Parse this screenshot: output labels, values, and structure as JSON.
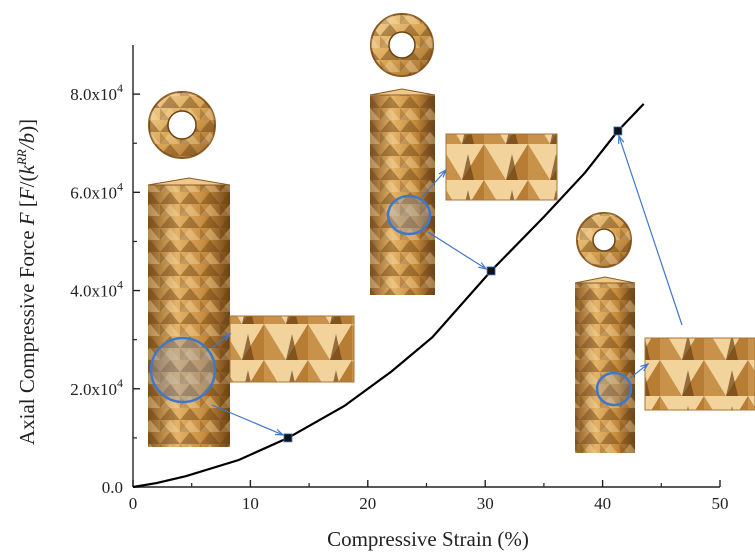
{
  "chart_data": {
    "type": "line",
    "title": "",
    "xlabel": "Compressive Strain (%)",
    "ylabel": {
      "prefix": "Axial Compressive Force ",
      "var": "F",
      "unit_open": " [",
      "unit_var": "F",
      "unit_mid": "/(",
      "unit_k": "k",
      "unit_sup": "RR",
      "unit_b": "/b",
      "unit_close": ")]"
    },
    "xlim": [
      0,
      50
    ],
    "ylim": [
      0,
      90000
    ],
    "xticks": [
      {
        "value": 0,
        "label": "0"
      },
      {
        "value": 10,
        "label": "10"
      },
      {
        "value": 20,
        "label": "20"
      },
      {
        "value": 30,
        "label": "30"
      },
      {
        "value": 40,
        "label": "40"
      },
      {
        "value": 50,
        "label": "50"
      }
    ],
    "yticks": [
      {
        "value": 0,
        "mant": "0.0",
        "exp": ""
      },
      {
        "value": 20000,
        "mant": "2.0x10",
        "exp": "4"
      },
      {
        "value": 40000,
        "mant": "4.0x10",
        "exp": "4"
      },
      {
        "value": 60000,
        "mant": "6.0x10",
        "exp": "4"
      },
      {
        "value": 80000,
        "mant": "8.0x10",
        "exp": "4"
      }
    ],
    "series": [
      {
        "x": [
          0,
          2,
          4.5,
          9,
          13.2,
          18,
          22,
          25.5,
          30.5,
          35,
          38.5,
          41.3,
          43.5
        ],
        "y": [
          0,
          800,
          2200,
          5500,
          10000,
          16500,
          23500,
          30500,
          44000,
          55000,
          64000,
          72500,
          78000
        ]
      }
    ],
    "markers": [
      {
        "x": 13.2,
        "y": 10000
      },
      {
        "x": 30.5,
        "y": 44000
      },
      {
        "x": 41.3,
        "y": 72500
      }
    ],
    "colors": {
      "line": "#000000",
      "axis": "#222222",
      "callout": "#3f78c9",
      "panel_light": "#f0c98a",
      "panel_mid": "#c9913f",
      "panel_dark": "#7a4f1c"
    }
  }
}
